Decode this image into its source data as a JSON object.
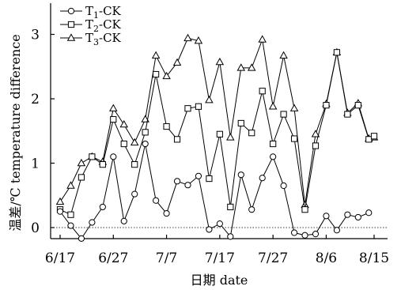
{
  "chart_data": {
    "type": "line",
    "title": "",
    "xlabel": "日期 date",
    "ylabel": "温差/℃ temperature difference",
    "x_ticks": [
      "6/17",
      "6/27",
      "7/7",
      "7/17",
      "7/27",
      "8/6",
      "8/15"
    ],
    "x_tick_days": [
      0,
      10,
      20,
      30,
      40,
      50,
      59
    ],
    "xlim_days": [
      0,
      59
    ],
    "ylim": [
      0,
      3.2
    ],
    "y_ticks": [
      "0",
      "1",
      "2",
      "3"
    ],
    "y_tick_values": [
      0,
      1,
      2,
      3
    ],
    "zero_line": "dotted",
    "legend_position": "top-left",
    "series": [
      {
        "name": "T1-CK",
        "name_main": "T",
        "name_sub": "1",
        "name_suffix": "-CK",
        "marker": "circle",
        "x_days": [
          0,
          2,
          4,
          6,
          8,
          10,
          12,
          14,
          16,
          18,
          20,
          22,
          24,
          26,
          28,
          30,
          32,
          34,
          36,
          38,
          40,
          42,
          44,
          46,
          48,
          50,
          52,
          54,
          56,
          58
        ],
        "values": [
          0.25,
          0.03,
          -0.17,
          0.08,
          0.32,
          1.1,
          0.1,
          0.52,
          1.3,
          0.42,
          0.22,
          0.72,
          0.66,
          0.8,
          -0.03,
          0.06,
          -0.14,
          0.82,
          0.28,
          0.77,
          1.1,
          0.65,
          -0.08,
          -0.12,
          -0.1,
          0.18,
          -0.04,
          0.2,
          0.16,
          0.23
        ]
      },
      {
        "name": "T2-CK",
        "name_main": "T",
        "name_sub": "2",
        "name_suffix": "-CK",
        "marker": "square",
        "x_days": [
          0,
          2,
          4,
          6,
          8,
          10,
          12,
          14,
          16,
          18,
          20,
          22,
          24,
          26,
          28,
          30,
          32,
          34,
          36,
          38,
          40,
          42,
          44,
          46,
          48,
          50,
          52,
          54,
          56,
          58,
          59
        ],
        "values": [
          0.28,
          0.2,
          0.78,
          1.1,
          0.98,
          1.68,
          1.3,
          0.98,
          1.48,
          2.38,
          1.57,
          1.37,
          1.85,
          1.88,
          0.76,
          1.45,
          0.32,
          1.62,
          1.47,
          2.12,
          1.3,
          1.76,
          1.38,
          0.28,
          1.27,
          1.9,
          2.72,
          1.76,
          1.9,
          1.37,
          1.42
        ]
      },
      {
        "name": "T3-CK",
        "name_main": "T",
        "name_sub": "3",
        "name_suffix": "-CK",
        "marker": "triangle",
        "x_days": [
          0,
          2,
          4,
          6,
          8,
          10,
          12,
          14,
          16,
          18,
          20,
          22,
          24,
          26,
          28,
          30,
          32,
          34,
          36,
          38,
          40,
          42,
          44,
          46,
          48,
          50,
          52,
          54,
          56,
          58,
          59
        ],
        "values": [
          0.4,
          0.65,
          1.0,
          1.1,
          1.02,
          1.85,
          1.6,
          1.32,
          1.68,
          2.67,
          2.35,
          2.56,
          2.94,
          2.9,
          1.98,
          2.57,
          1.4,
          2.48,
          2.48,
          2.92,
          1.88,
          2.67,
          1.85,
          0.35,
          1.45,
          1.92,
          2.72,
          1.78,
          1.93,
          1.38,
          1.4
        ]
      }
    ]
  }
}
